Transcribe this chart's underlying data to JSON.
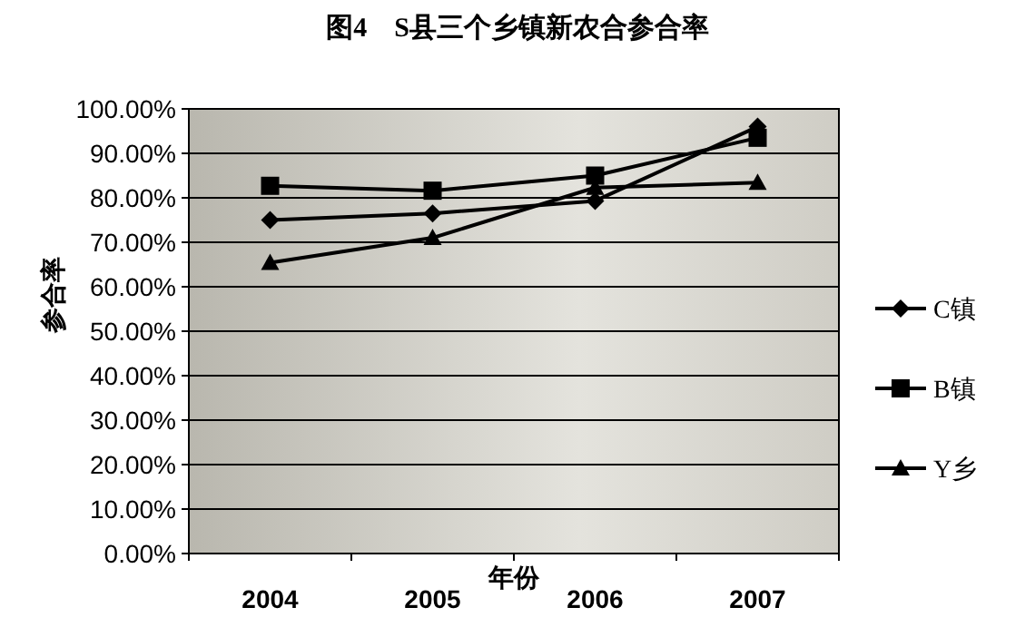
{
  "chart_data": {
    "type": "line",
    "title": "图4　S县三个乡镇新农合参合率",
    "xlabel": "年份",
    "ylabel": "参合率",
    "categories": [
      "2004",
      "2005",
      "2006",
      "2007"
    ],
    "series": [
      {
        "name": "C镇",
        "color": "#000000",
        "marker": "diamond",
        "values": [
          75,
          76.5,
          79.3,
          96
        ]
      },
      {
        "name": "B镇",
        "color": "#000000",
        "marker": "square",
        "values": [
          82.7,
          81.6,
          85,
          93.5
        ]
      },
      {
        "name": "Y乡",
        "color": "#000000",
        "marker": "triangle",
        "values": [
          65.4,
          71,
          82.3,
          83.4
        ]
      }
    ],
    "ylim": [
      0,
      100
    ],
    "yticks": [
      {
        "value": 0,
        "label": "0.00%"
      },
      {
        "value": 10,
        "label": "10.00%"
      },
      {
        "value": 20,
        "label": "20.00%"
      },
      {
        "value": 30,
        "label": "30.00%"
      },
      {
        "value": 40,
        "label": "40.00%"
      },
      {
        "value": 50,
        "label": "50.00%"
      },
      {
        "value": 60,
        "label": "60.00%"
      },
      {
        "value": 70,
        "label": "70.00%"
      },
      {
        "value": 80,
        "label": "80.00%"
      },
      {
        "value": 90,
        "label": "90.00%"
      },
      {
        "value": 100,
        "label": "100.00%"
      }
    ],
    "grid": "y",
    "legend": "right",
    "line_style": "solid"
  }
}
